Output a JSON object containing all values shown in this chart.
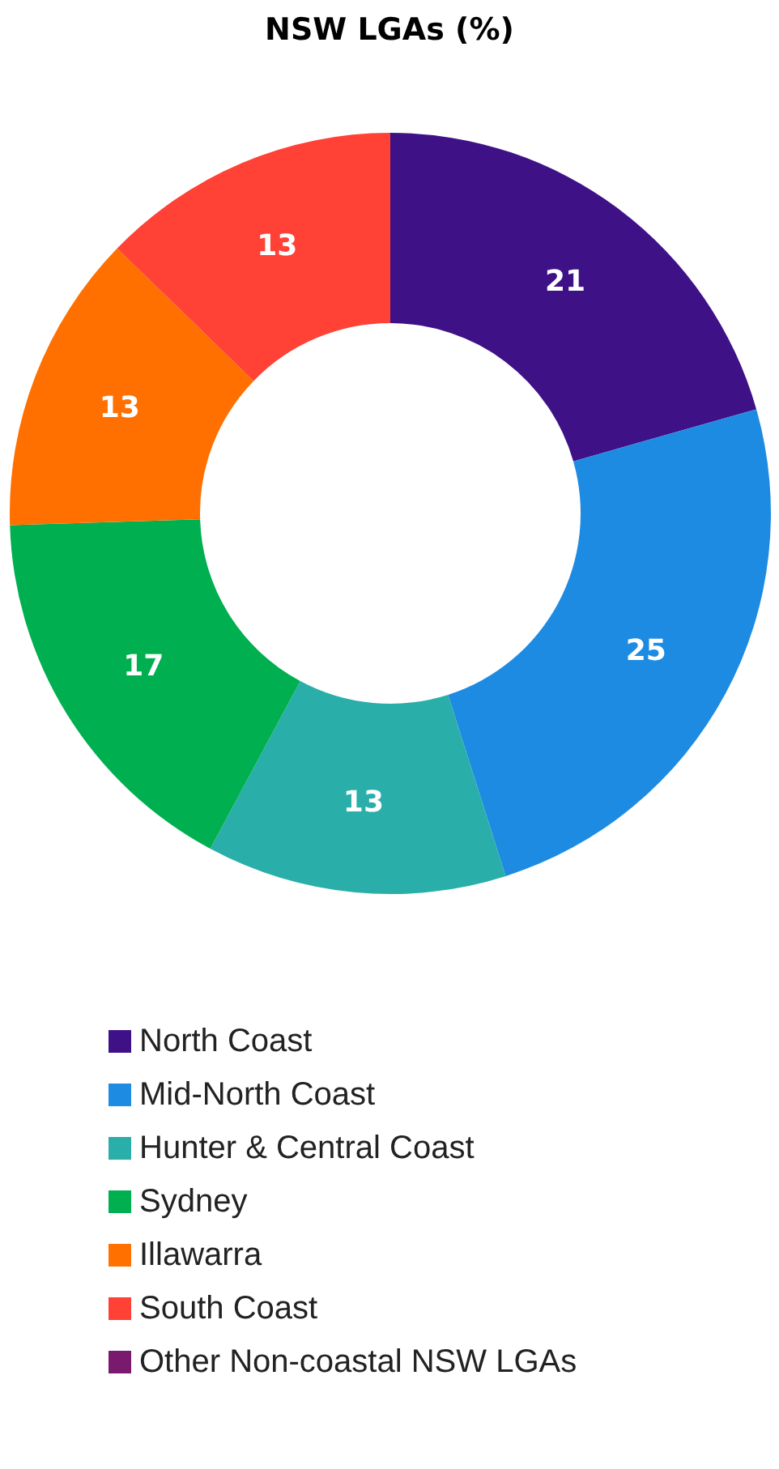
{
  "chart_data": {
    "type": "donut",
    "title": "NSW LGAs (%)",
    "categories": [
      "North Coast",
      "Mid-North Coast",
      "Hunter & Central Coast",
      "Sydney",
      "Illawarra",
      "South Coast",
      "Other Non-coastal NSW LGAs"
    ],
    "values": [
      21,
      25,
      13,
      17,
      13,
      13,
      0
    ],
    "value_labels": [
      "21",
      "25",
      "13",
      "17",
      "13",
      "13",
      null
    ],
    "colors": [
      "#3f1187",
      "#1e8be3",
      "#2aaeaa",
      "#00b050",
      "#ff7000",
      "#ff4136",
      "#7a1a6e"
    ],
    "legend": "bottom"
  }
}
